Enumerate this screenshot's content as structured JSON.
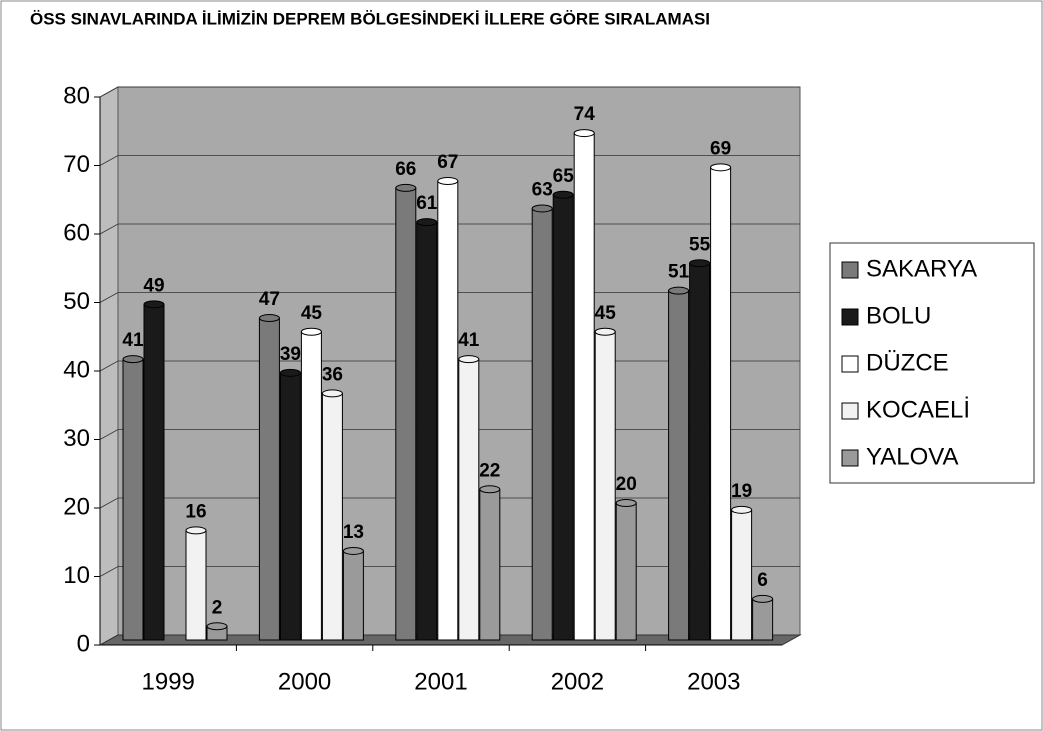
{
  "chart_data": {
    "type": "bar",
    "title": "ÖSS SINAVLARINDA İLİMİZİN DEPREM BÖLGESİNDEKİ İLLERE GÖRE SIRALAMASI",
    "categories": [
      "1999",
      "2000",
      "2001",
      "2002",
      "2003"
    ],
    "series": [
      {
        "name": "SAKARYA",
        "color": "#7a7a7a",
        "values": [
          41,
          47,
          66,
          63,
          51
        ]
      },
      {
        "name": "BOLU",
        "color": "#1a1a1a",
        "values": [
          49,
          39,
          61,
          65,
          55
        ]
      },
      {
        "name": "DÜZCE",
        "color": "#ffffff",
        "values": [
          null,
          45,
          67,
          74,
          69
        ]
      },
      {
        "name": "KOCAELİ",
        "color": "#f2f2f2",
        "values": [
          16,
          36,
          41,
          45,
          19
        ]
      },
      {
        "name": "YALOVA",
        "color": "#9a9a9a",
        "values": [
          2,
          13,
          22,
          20,
          6
        ]
      }
    ],
    "ylim": [
      0,
      80
    ],
    "yticks": [
      0,
      10,
      20,
      30,
      40,
      50,
      60,
      70,
      80
    ],
    "grid": true,
    "legend": "right"
  }
}
